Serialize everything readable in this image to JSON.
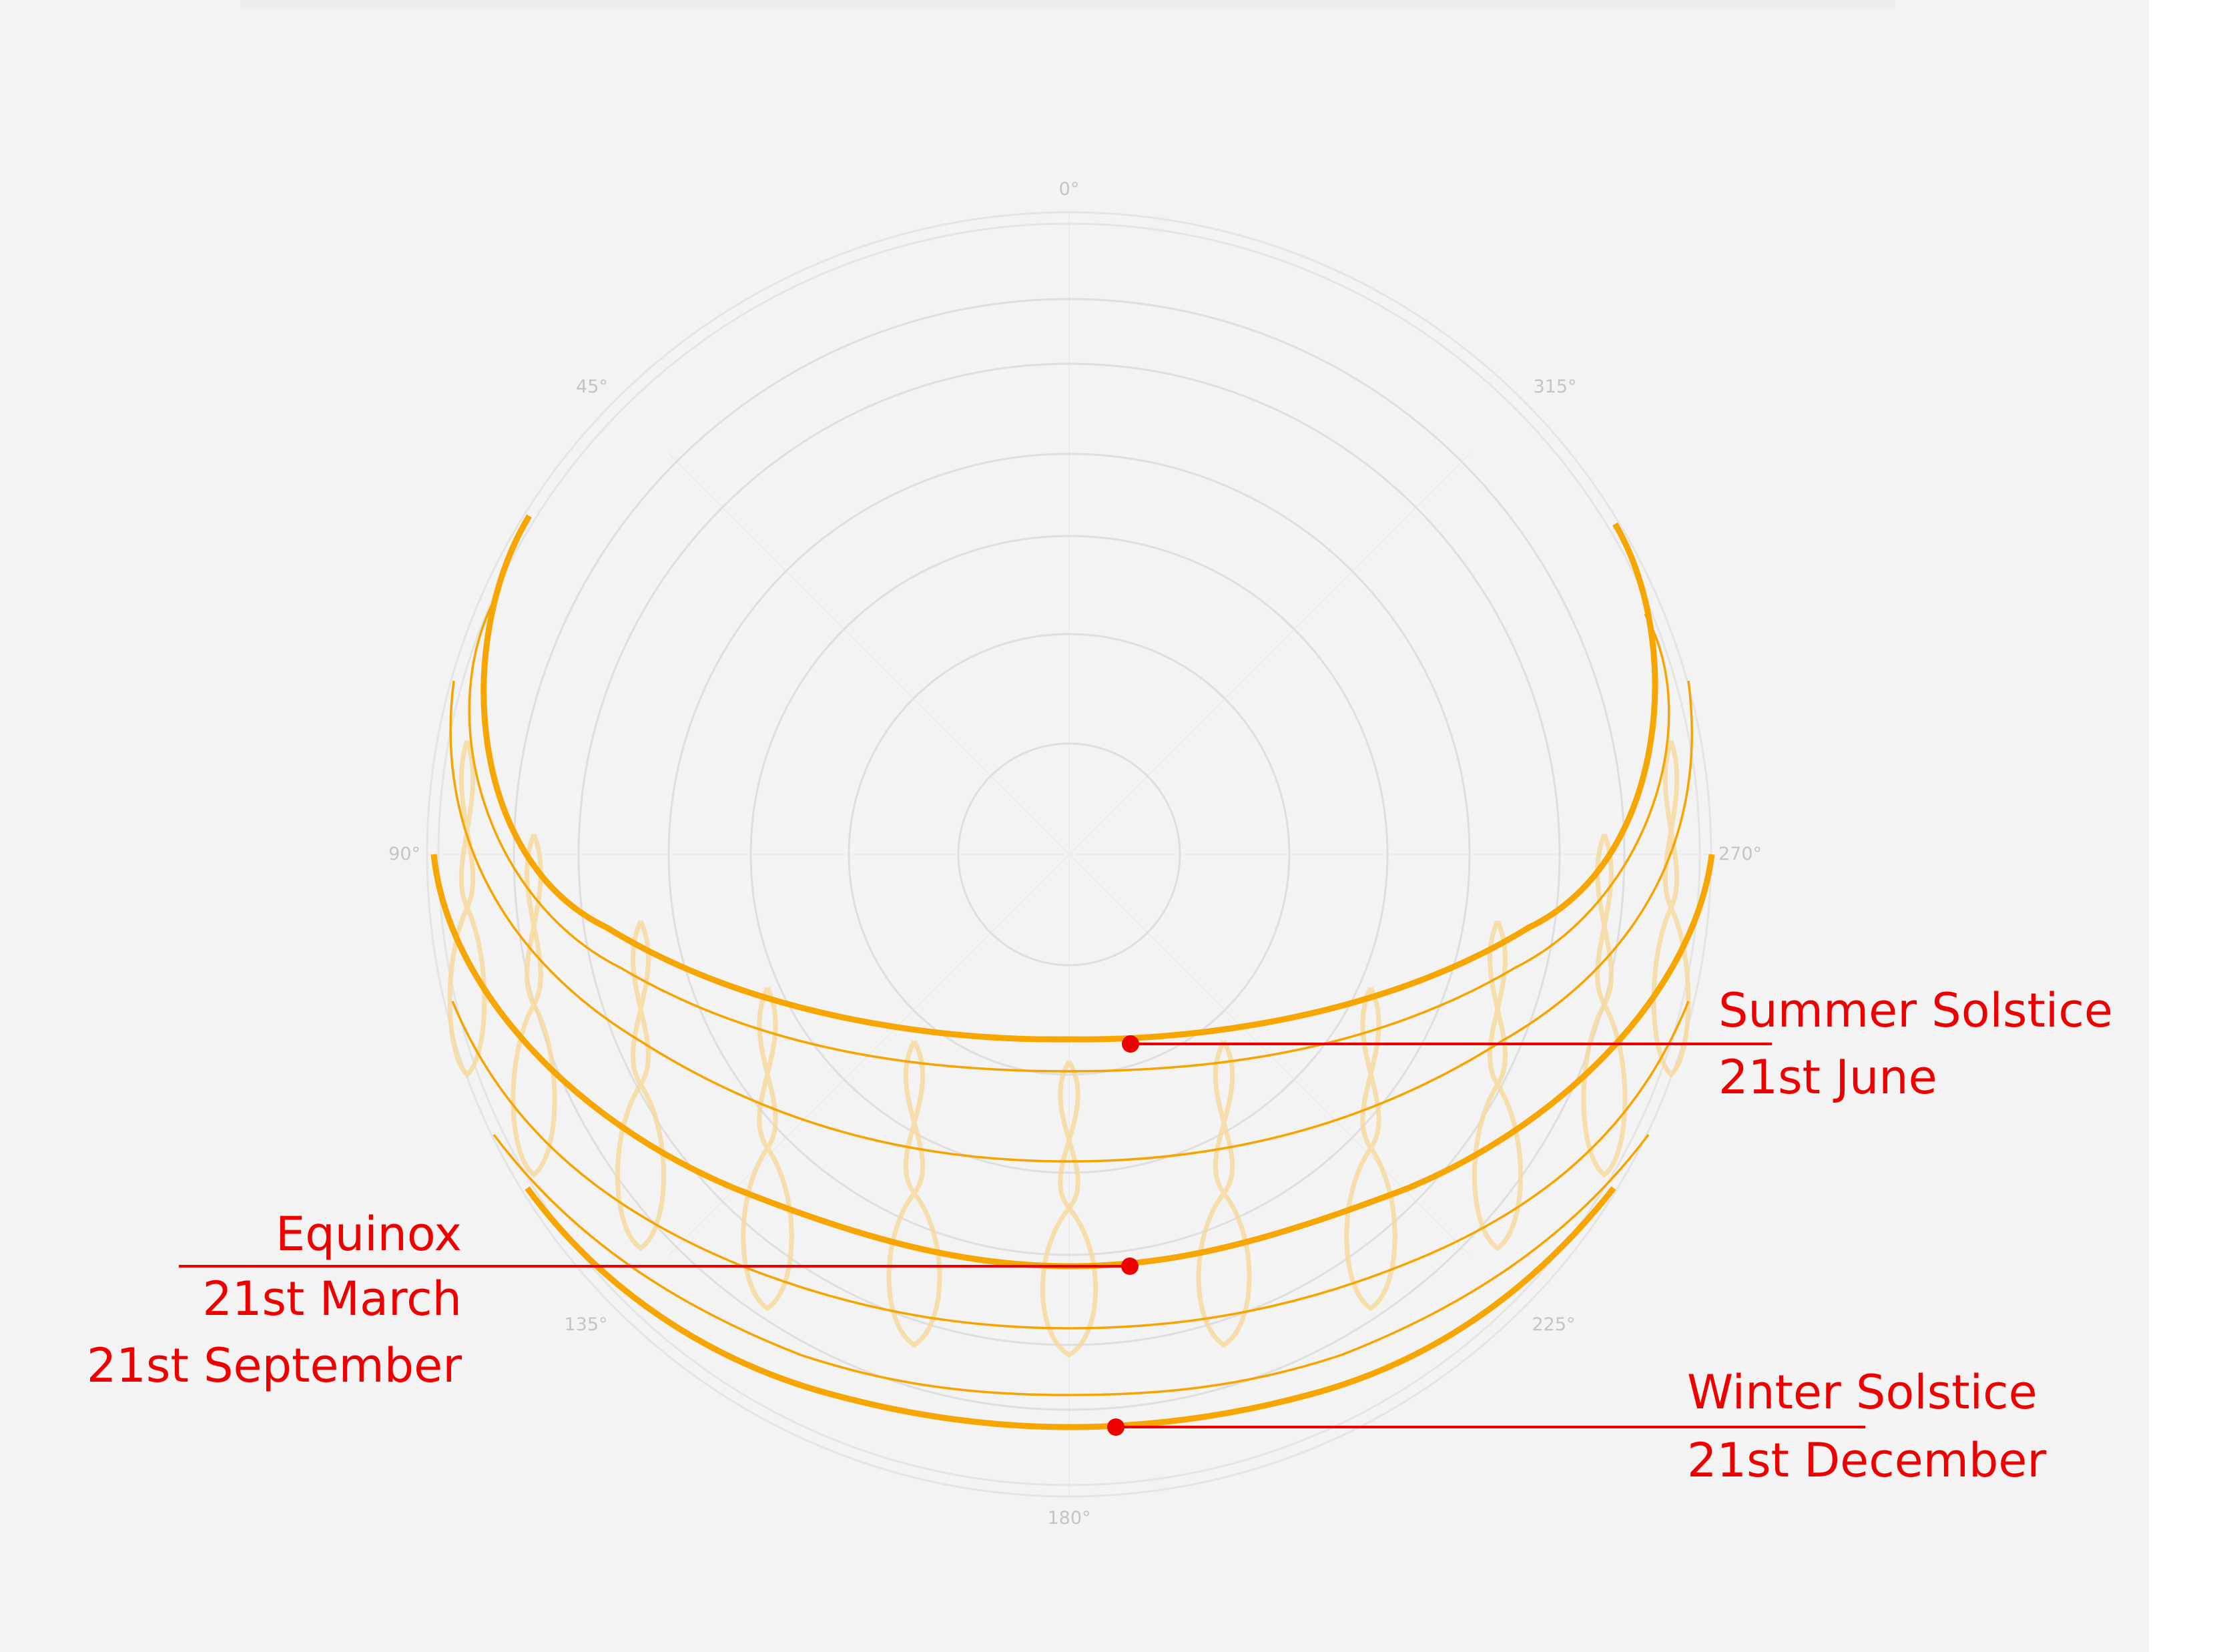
{
  "diagram": {
    "background_color": "#f3f3f3",
    "path_color": "#f7a600",
    "analemma_color": "#f6d79a",
    "annotation_color": "#ee0000",
    "azimuth_labels": [
      {
        "id": "n",
        "text": "0°",
        "azimuth_deg": 0
      },
      {
        "id": "ne",
        "text": "45°",
        "azimuth_deg": 45
      },
      {
        "id": "e",
        "text": "90°",
        "azimuth_deg": 90
      },
      {
        "id": "se",
        "text": "135°",
        "azimuth_deg": 135
      },
      {
        "id": "s",
        "text": "180°",
        "azimuth_deg": 180
      },
      {
        "id": "sw",
        "text": "225°",
        "azimuth_deg": 225
      },
      {
        "id": "w",
        "text": "270°",
        "azimuth_deg": 270
      },
      {
        "id": "nw",
        "text": "315°",
        "azimuth_deg": 315
      }
    ],
    "annotations": {
      "summer": {
        "title": "Summer Solstice",
        "date": "21st June"
      },
      "equinox": {
        "title": "Equinox",
        "date1": "21st March",
        "date2": "21st September"
      },
      "winter": {
        "title": "Winter Solstice",
        "date": "21st December"
      }
    }
  }
}
